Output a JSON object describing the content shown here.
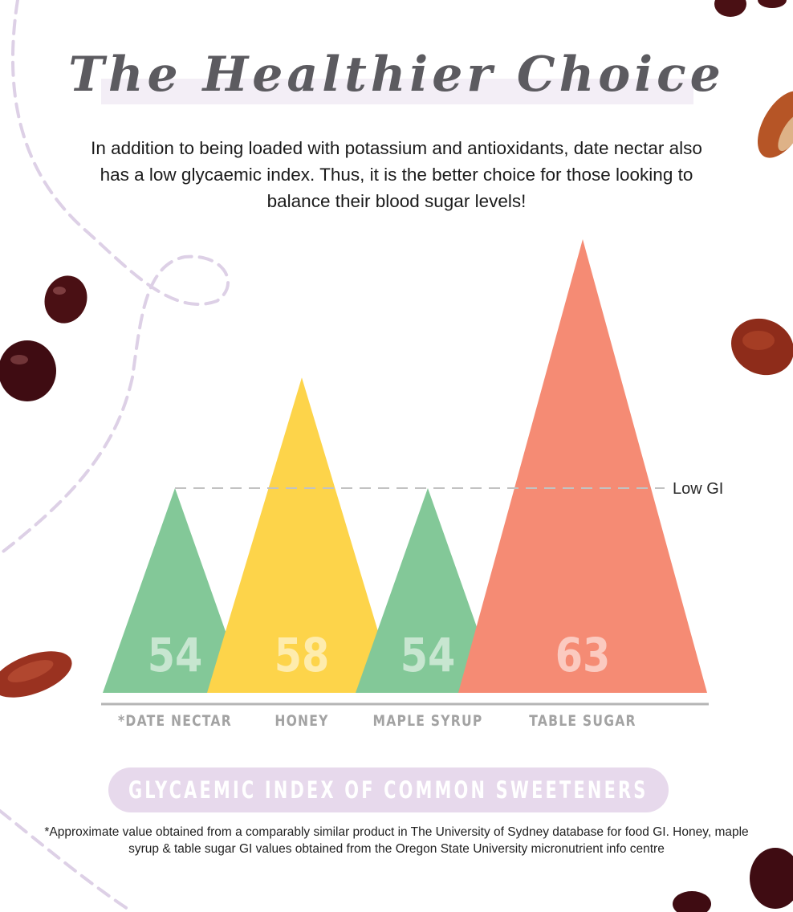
{
  "title": "The Healthier Choice",
  "intro": "In addition to being loaded with potassium and antioxidants, date nectar also has a low glycaemic index. Thus, it is the better choice for those looking to balance their blood sugar levels!",
  "legend_caption": "GLYCAEMIC INDEX OF COMMON SWEETENERS",
  "footnote": "*Approximate value obtained from a comparably similar product in The University of Sydney database for food GI. Honey, maple syrup & table sugar GI values obtained from the Oregon State University micronutrient info centre",
  "colors": {
    "low_gi": "#83c898",
    "medium_gi": "#fdd44a",
    "high_gi": "#f58b74",
    "value_text": "#ffffff",
    "axis": "#b5b5b5",
    "category_text": "#a3a3a3",
    "reference_line": "#c2c2c2"
  },
  "chart_data": {
    "type": "bar",
    "mark_shape": "triangle",
    "categories": [
      "*DATE NECTAR",
      "HONEY",
      "MAPLE SYRUP",
      "TABLE SUGAR"
    ],
    "values": [
      54,
      58,
      54,
      63
    ],
    "value_labels": [
      "54",
      "58",
      "54",
      "63"
    ],
    "bar_colors": [
      "#83c898",
      "#fdd44a",
      "#83c898",
      "#f58b74"
    ],
    "reference_line": {
      "value": 54,
      "label": "Low GI",
      "style": "dashed"
    },
    "ylim": [
      46.6,
      63
    ],
    "title": "",
    "xlabel": "",
    "ylabel": "",
    "grid": false
  }
}
